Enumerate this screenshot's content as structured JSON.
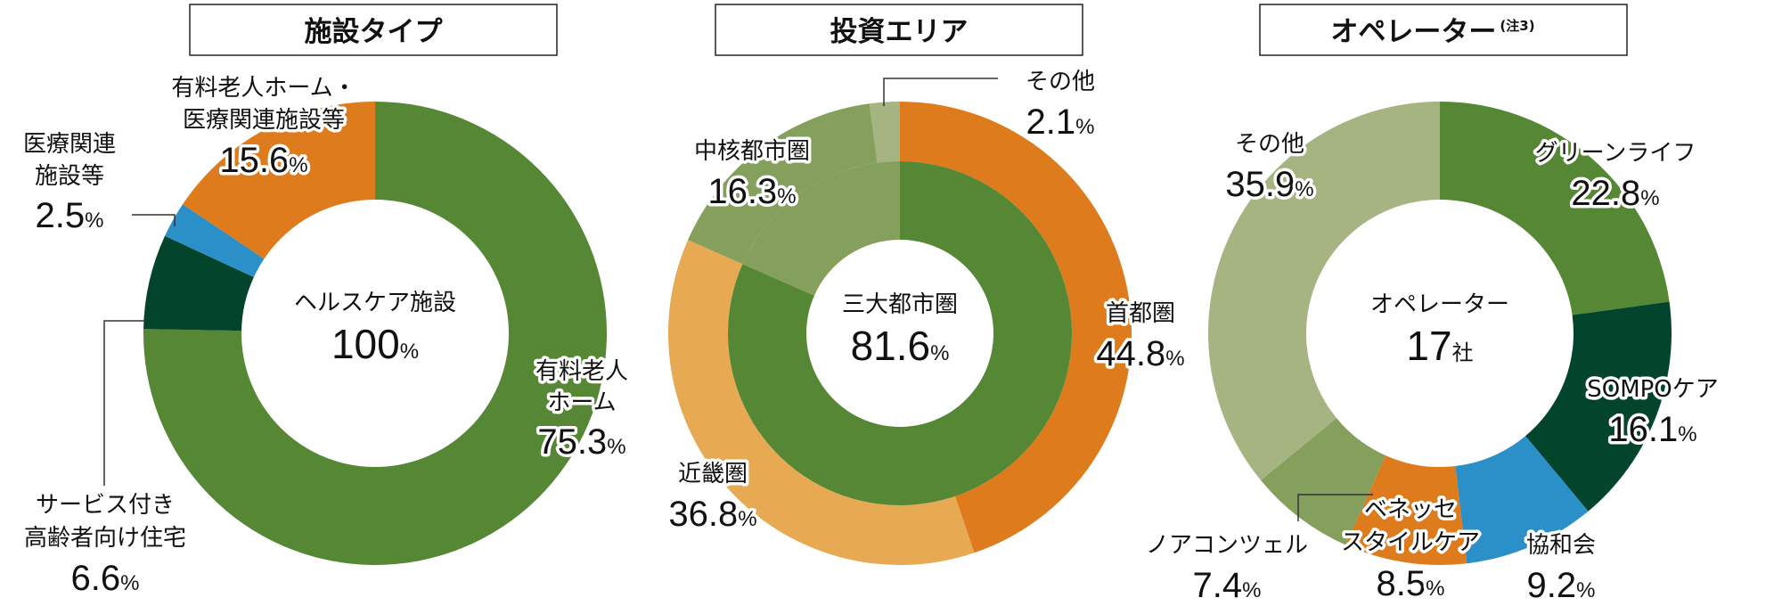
{
  "chart_data": [
    {
      "type": "pie",
      "title": "施設タイプ",
      "center": {
        "label": "ヘルスケア施設",
        "value": "100",
        "unit": "%"
      },
      "slices": [
        {
          "name": "有料老人ホーム",
          "value": 75.3,
          "color": "#558735"
        },
        {
          "name": "サービス付き高齢者向け住宅",
          "value": 6.6,
          "color": "#03442d"
        },
        {
          "name": "医療関連施設等",
          "value": 2.5,
          "color": "#2b8fc8"
        },
        {
          "name": "有料老人ホーム・医療関連施設等",
          "value": 15.6,
          "color": "#dd7b1d"
        }
      ],
      "labels": [
        {
          "lines": [
            "有料老人",
            "ホーム"
          ],
          "value": "75.3",
          "unit": "%"
        },
        {
          "lines": [
            "サービス付き",
            "高齢者向け住宅"
          ],
          "value": "6.6",
          "unit": "%"
        },
        {
          "lines": [
            "医療関連",
            "施設等"
          ],
          "value": "2.5",
          "unit": "%"
        },
        {
          "lines": [
            "有料老人ホーム・",
            "医療関連施設等"
          ],
          "value": "15.6",
          "unit": "%"
        }
      ]
    },
    {
      "type": "pie",
      "title": "投資エリア",
      "center": {
        "label": "三大都市圏",
        "value": "81.6",
        "unit": "%"
      },
      "inner_ring": {
        "name": "三大都市圏",
        "value": 81.6,
        "color": "#558735"
      },
      "slices": [
        {
          "name": "首都圏",
          "value": 44.8,
          "color": "#dd7b1d"
        },
        {
          "name": "近畿圏",
          "value": 36.8,
          "color": "#e7aa52"
        },
        {
          "name": "中核都市圏",
          "value": 16.3,
          "color": "#859f5c"
        },
        {
          "name": "その他",
          "value": 2.1,
          "color": "#a6b481"
        }
      ],
      "labels": [
        {
          "lines": [
            "首都圏"
          ],
          "value": "44.8",
          "unit": "%"
        },
        {
          "lines": [
            "近畿圏"
          ],
          "value": "36.8",
          "unit": "%"
        },
        {
          "lines": [
            "中核都市圏"
          ],
          "value": "16.3",
          "unit": "%"
        },
        {
          "lines": [
            "その他"
          ],
          "value": "2.1",
          "unit": "%"
        }
      ]
    },
    {
      "type": "pie",
      "title": "オペレーター",
      "title_note": "(注3)",
      "center": {
        "label": "オペレーター",
        "value": "17",
        "unit": "社"
      },
      "slices": [
        {
          "name": "グリーンライフ",
          "value": 22.8,
          "color": "#558735"
        },
        {
          "name": "SOMPOケア",
          "value": 16.1,
          "color": "#03442d"
        },
        {
          "name": "協和会",
          "value": 9.2,
          "color": "#2b8fc8"
        },
        {
          "name": "ベネッセスタイルケア",
          "value": 8.5,
          "color": "#dd7b1d"
        },
        {
          "name": "ノアコンツェル",
          "value": 7.4,
          "color": "#859f5c"
        },
        {
          "name": "その他",
          "value": 35.9,
          "color": "#a6b481"
        }
      ],
      "labels": [
        {
          "lines": [
            "グリーンライフ"
          ],
          "value": "22.8",
          "unit": "%"
        },
        {
          "lines": [
            "SOMPOケア"
          ],
          "value": "16.1",
          "unit": "%"
        },
        {
          "lines": [
            "協和会"
          ],
          "value": "9.2",
          "unit": "%"
        },
        {
          "lines": [
            "ベネッセ",
            "スタイルケア"
          ],
          "value": "8.5",
          "unit": "%"
        },
        {
          "lines": [
            "ノアコンツェル"
          ],
          "value": "7.4",
          "unit": "%"
        },
        {
          "lines": [
            "その他"
          ],
          "value": "35.9",
          "unit": "%"
        }
      ]
    }
  ]
}
